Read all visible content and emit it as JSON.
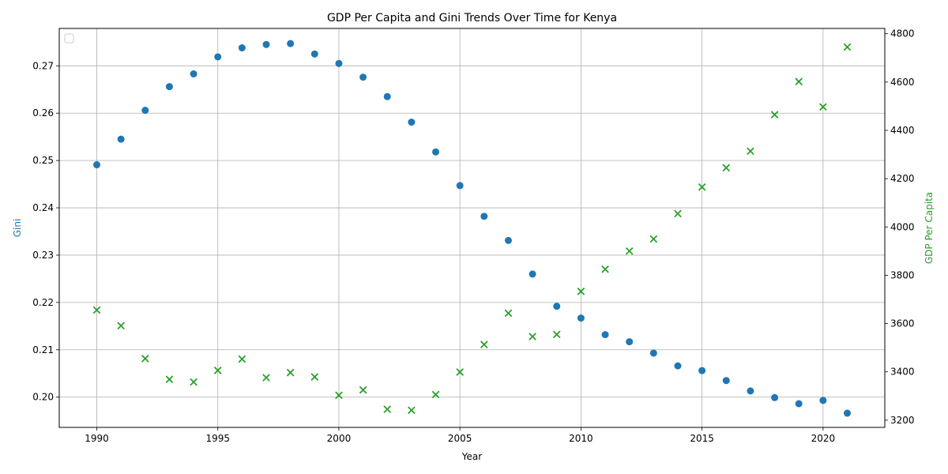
{
  "colors": {
    "gini": "#1f77b4",
    "gdp": "#2ca02c",
    "grid": "#b0b0b0",
    "axis": "#000000"
  },
  "chart_data": {
    "type": "scatter",
    "title": "GDP Per Capita and Gini Trends Over Time for Kenya",
    "xlabel": "Year",
    "x": [
      1990,
      1991,
      1992,
      1993,
      1994,
      1995,
      1996,
      1997,
      1998,
      1999,
      2000,
      2001,
      2002,
      2003,
      2004,
      2005,
      2006,
      2007,
      2008,
      2009,
      2010,
      2011,
      2012,
      2013,
      2014,
      2015,
      2016,
      2017,
      2018,
      2019,
      2020,
      2021
    ],
    "xlim": [
      1988.45,
      2022.55
    ],
    "xticks": [
      1990,
      1995,
      2000,
      2005,
      2010,
      2015,
      2020
    ],
    "grid": true,
    "legend": "top-left (empty)",
    "left_axis": {
      "label": "Gini",
      "ylim": [
        0.1936,
        0.2779
      ],
      "ticks": [
        0.2,
        0.21,
        0.22,
        0.23,
        0.24,
        0.25,
        0.26,
        0.27
      ],
      "tick_labels": [
        "0.20",
        "0.21",
        "0.22",
        "0.23",
        "0.24",
        "0.25",
        "0.26",
        "0.27"
      ]
    },
    "right_axis": {
      "label": "GDP Per Capita",
      "ylim": [
        3170,
        4822
      ],
      "ticks": [
        3200,
        3400,
        3600,
        3800,
        4000,
        4200,
        4400,
        4600,
        4800
      ],
      "tick_labels": [
        "3200",
        "3400",
        "3600",
        "3800",
        "4000",
        "4200",
        "4400",
        "4600",
        "4800"
      ]
    },
    "series": [
      {
        "axis": "left",
        "marker": "circle",
        "values": [
          0.2491,
          0.2545,
          0.2606,
          0.2656,
          0.2683,
          0.2719,
          0.2738,
          0.2745,
          0.2747,
          0.2725,
          0.2705,
          0.2676,
          0.2635,
          0.2581,
          0.2518,
          0.2447,
          0.2382,
          0.2331,
          0.226,
          0.2192,
          0.2167,
          0.2132,
          0.2117,
          0.2093,
          0.2066,
          0.2056,
          0.2035,
          0.2013,
          0.1999,
          0.1986,
          0.1993,
          0.1966
        ]
      },
      {
        "axis": "right",
        "marker": "x",
        "values": [
          3656,
          3591,
          3455,
          3369,
          3358,
          3406,
          3453,
          3376,
          3397,
          3379,
          3303,
          3325,
          3245,
          3241,
          3306,
          3399,
          3513,
          3643,
          3546,
          3555,
          3733,
          3825,
          3900,
          3950,
          4055,
          4165,
          4245,
          4314,
          4465,
          4602,
          4497,
          4745
        ]
      }
    ]
  }
}
